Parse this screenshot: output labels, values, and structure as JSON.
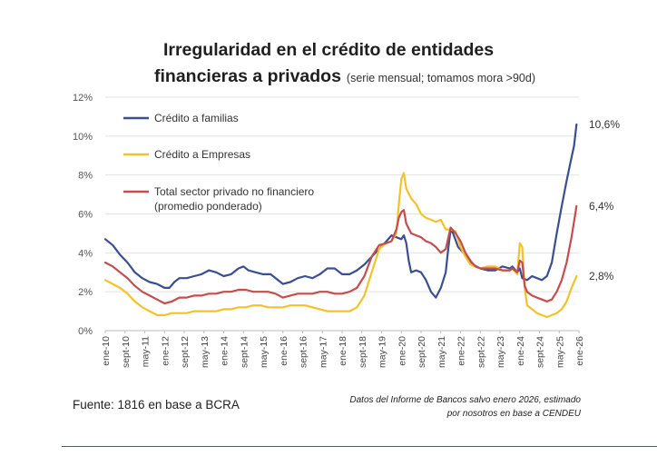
{
  "header": {
    "title_line1": "Irregularidad en el crédito de entidades",
    "title_line2": "financieras a privados",
    "subtitle": "(serie mensual; tomamos mora >90d)"
  },
  "footer": {
    "source": "Fuente: 1816 en base a BCRA",
    "note_line1": "Datos del Informe de Bancos salvo enero 2026, estimado",
    "note_line2": "por nosotros en base a CENDEU"
  },
  "chart_data": {
    "type": "line",
    "title": "Irregularidad en el crédito de entidades financieras a privados",
    "ylim": [
      0,
      12
    ],
    "y_ticks": [
      "0%",
      "2%",
      "4%",
      "6%",
      "8%",
      "10%",
      "12%"
    ],
    "x_ticks": [
      "ene-10",
      "sept-10",
      "may-11",
      "ene-12",
      "sept-12",
      "may-13",
      "ene-14",
      "sept-14",
      "may-15",
      "ene-16",
      "sept-16",
      "may-17",
      "ene-18",
      "sept-18",
      "may-19",
      "ene-20",
      "sept-20",
      "may-21",
      "ene-22",
      "sept-22",
      "may-23",
      "ene-24",
      "sept-24",
      "may-25",
      "ene-26"
    ],
    "grid": true,
    "legend_position": "top-left",
    "x_unit": "months since ene-10",
    "series": [
      {
        "name": "Crédito a familias",
        "color": "#3a4f91",
        "end_label": "10,6%",
        "points": [
          [
            0,
            4.7
          ],
          [
            3,
            4.4
          ],
          [
            6,
            3.9
          ],
          [
            9,
            3.5
          ],
          [
            12,
            3.0
          ],
          [
            15,
            2.7
          ],
          [
            18,
            2.5
          ],
          [
            21,
            2.4
          ],
          [
            24,
            2.2
          ],
          [
            26,
            2.2
          ],
          [
            28,
            2.5
          ],
          [
            30,
            2.7
          ],
          [
            33,
            2.7
          ],
          [
            36,
            2.8
          ],
          [
            39,
            2.9
          ],
          [
            42,
            3.1
          ],
          [
            45,
            3.0
          ],
          [
            48,
            2.8
          ],
          [
            51,
            2.9
          ],
          [
            54,
            3.2
          ],
          [
            56,
            3.3
          ],
          [
            58,
            3.1
          ],
          [
            61,
            3.0
          ],
          [
            64,
            2.9
          ],
          [
            67,
            2.9
          ],
          [
            70,
            2.6
          ],
          [
            72,
            2.4
          ],
          [
            75,
            2.5
          ],
          [
            78,
            2.7
          ],
          [
            81,
            2.8
          ],
          [
            84,
            2.7
          ],
          [
            87,
            2.9
          ],
          [
            90,
            3.2
          ],
          [
            93,
            3.2
          ],
          [
            96,
            2.9
          ],
          [
            99,
            2.9
          ],
          [
            102,
            3.1
          ],
          [
            105,
            3.4
          ],
          [
            108,
            3.8
          ],
          [
            111,
            4.2
          ],
          [
            114,
            4.6
          ],
          [
            116,
            4.9
          ],
          [
            118,
            4.8
          ],
          [
            120,
            4.7
          ],
          [
            121,
            4.9
          ],
          [
            122,
            4.5
          ],
          [
            123,
            3.6
          ],
          [
            124,
            3.0
          ],
          [
            126,
            3.1
          ],
          [
            128,
            3.0
          ],
          [
            130,
            2.6
          ],
          [
            132,
            2.0
          ],
          [
            134,
            1.7
          ],
          [
            136,
            2.2
          ],
          [
            138,
            3.0
          ],
          [
            139,
            4.2
          ],
          [
            140,
            5.2
          ],
          [
            141,
            5.0
          ],
          [
            143,
            4.3
          ],
          [
            146,
            3.9
          ],
          [
            149,
            3.4
          ],
          [
            152,
            3.2
          ],
          [
            155,
            3.1
          ],
          [
            158,
            3.1
          ],
          [
            161,
            3.3
          ],
          [
            164,
            3.2
          ],
          [
            165,
            3.3
          ],
          [
            167,
            3.0
          ],
          [
            168,
            3.2
          ],
          [
            169,
            2.7
          ],
          [
            171,
            2.6
          ],
          [
            173,
            2.8
          ],
          [
            175,
            2.7
          ],
          [
            177,
            2.6
          ],
          [
            179,
            2.8
          ],
          [
            181,
            3.5
          ],
          [
            183,
            5.0
          ],
          [
            185,
            6.4
          ],
          [
            187,
            7.7
          ],
          [
            189,
            8.9
          ],
          [
            190,
            9.5
          ],
          [
            191,
            10.6
          ]
        ]
      },
      {
        "name": "Crédito a Empresas",
        "color": "#f3c22b",
        "end_label": "2,8%",
        "points": [
          [
            0,
            2.6
          ],
          [
            3,
            2.4
          ],
          [
            6,
            2.2
          ],
          [
            9,
            1.9
          ],
          [
            12,
            1.5
          ],
          [
            15,
            1.2
          ],
          [
            18,
            1.0
          ],
          [
            21,
            0.8
          ],
          [
            24,
            0.8
          ],
          [
            27,
            0.9
          ],
          [
            30,
            0.9
          ],
          [
            33,
            0.9
          ],
          [
            36,
            1.0
          ],
          [
            39,
            1.0
          ],
          [
            42,
            1.0
          ],
          [
            45,
            1.0
          ],
          [
            48,
            1.1
          ],
          [
            51,
            1.1
          ],
          [
            54,
            1.2
          ],
          [
            57,
            1.2
          ],
          [
            60,
            1.3
          ],
          [
            63,
            1.3
          ],
          [
            66,
            1.2
          ],
          [
            69,
            1.2
          ],
          [
            72,
            1.2
          ],
          [
            75,
            1.3
          ],
          [
            78,
            1.3
          ],
          [
            81,
            1.3
          ],
          [
            84,
            1.2
          ],
          [
            87,
            1.1
          ],
          [
            90,
            1.0
          ],
          [
            93,
            1.0
          ],
          [
            96,
            1.0
          ],
          [
            99,
            1.0
          ],
          [
            102,
            1.2
          ],
          [
            105,
            1.8
          ],
          [
            108,
            3.0
          ],
          [
            111,
            4.2
          ],
          [
            114,
            4.5
          ],
          [
            116,
            4.6
          ],
          [
            118,
            5.0
          ],
          [
            119,
            6.5
          ],
          [
            120,
            7.8
          ],
          [
            121,
            8.1
          ],
          [
            122,
            7.3
          ],
          [
            124,
            6.8
          ],
          [
            126,
            6.5
          ],
          [
            128,
            6.0
          ],
          [
            130,
            5.8
          ],
          [
            132,
            5.7
          ],
          [
            134,
            5.6
          ],
          [
            136,
            5.7
          ],
          [
            138,
            5.2
          ],
          [
            140,
            5.2
          ],
          [
            142,
            5.1
          ],
          [
            144,
            4.3
          ],
          [
            146,
            3.8
          ],
          [
            148,
            3.4
          ],
          [
            150,
            3.3
          ],
          [
            152,
            3.2
          ],
          [
            155,
            3.3
          ],
          [
            158,
            3.3
          ],
          [
            161,
            3.1
          ],
          [
            164,
            3.1
          ],
          [
            165,
            3.2
          ],
          [
            167,
            2.9
          ],
          [
            168,
            4.5
          ],
          [
            169,
            4.3
          ],
          [
            170,
            2.2
          ],
          [
            171,
            1.3
          ],
          [
            173,
            1.1
          ],
          [
            175,
            0.9
          ],
          [
            177,
            0.8
          ],
          [
            179,
            0.7
          ],
          [
            181,
            0.8
          ],
          [
            183,
            0.9
          ],
          [
            185,
            1.1
          ],
          [
            187,
            1.5
          ],
          [
            189,
            2.2
          ],
          [
            191,
            2.8
          ]
        ]
      },
      {
        "name": "Total sector privado no financiero",
        "name_line2": "(promedio ponderado)",
        "color": "#c54d4d",
        "end_label": "6,4%",
        "points": [
          [
            0,
            3.5
          ],
          [
            3,
            3.3
          ],
          [
            6,
            3.0
          ],
          [
            9,
            2.7
          ],
          [
            12,
            2.3
          ],
          [
            15,
            2.0
          ],
          [
            18,
            1.8
          ],
          [
            21,
            1.6
          ],
          [
            24,
            1.4
          ],
          [
            27,
            1.5
          ],
          [
            30,
            1.7
          ],
          [
            33,
            1.7
          ],
          [
            36,
            1.8
          ],
          [
            39,
            1.8
          ],
          [
            42,
            1.9
          ],
          [
            45,
            1.9
          ],
          [
            48,
            2.0
          ],
          [
            51,
            2.0
          ],
          [
            54,
            2.1
          ],
          [
            57,
            2.1
          ],
          [
            60,
            2.0
          ],
          [
            63,
            2.0
          ],
          [
            66,
            2.0
          ],
          [
            69,
            1.9
          ],
          [
            72,
            1.7
          ],
          [
            75,
            1.8
          ],
          [
            78,
            1.9
          ],
          [
            81,
            1.9
          ],
          [
            84,
            1.9
          ],
          [
            87,
            2.0
          ],
          [
            90,
            2.0
          ],
          [
            93,
            1.9
          ],
          [
            96,
            1.9
          ],
          [
            99,
            2.0
          ],
          [
            102,
            2.2
          ],
          [
            105,
            2.8
          ],
          [
            108,
            3.8
          ],
          [
            111,
            4.4
          ],
          [
            114,
            4.5
          ],
          [
            116,
            4.6
          ],
          [
            118,
            5.2
          ],
          [
            119,
            5.8
          ],
          [
            120,
            6.1
          ],
          [
            121,
            6.2
          ],
          [
            122,
            5.5
          ],
          [
            124,
            5.0
          ],
          [
            126,
            4.9
          ],
          [
            128,
            4.8
          ],
          [
            130,
            4.6
          ],
          [
            132,
            4.5
          ],
          [
            134,
            4.3
          ],
          [
            136,
            4.0
          ],
          [
            138,
            4.2
          ],
          [
            140,
            5.3
          ],
          [
            142,
            5.0
          ],
          [
            144,
            4.6
          ],
          [
            146,
            4.0
          ],
          [
            148,
            3.6
          ],
          [
            150,
            3.3
          ],
          [
            152,
            3.2
          ],
          [
            155,
            3.2
          ],
          [
            158,
            3.2
          ],
          [
            161,
            3.1
          ],
          [
            164,
            3.1
          ],
          [
            165,
            3.2
          ],
          [
            167,
            3.0
          ],
          [
            168,
            3.6
          ],
          [
            169,
            3.5
          ],
          [
            170,
            2.3
          ],
          [
            171,
            2.0
          ],
          [
            173,
            1.8
          ],
          [
            175,
            1.7
          ],
          [
            177,
            1.6
          ],
          [
            179,
            1.5
          ],
          [
            181,
            1.6
          ],
          [
            183,
            2.0
          ],
          [
            185,
            2.6
          ],
          [
            187,
            3.5
          ],
          [
            189,
            4.8
          ],
          [
            191,
            6.4
          ]
        ]
      }
    ]
  }
}
